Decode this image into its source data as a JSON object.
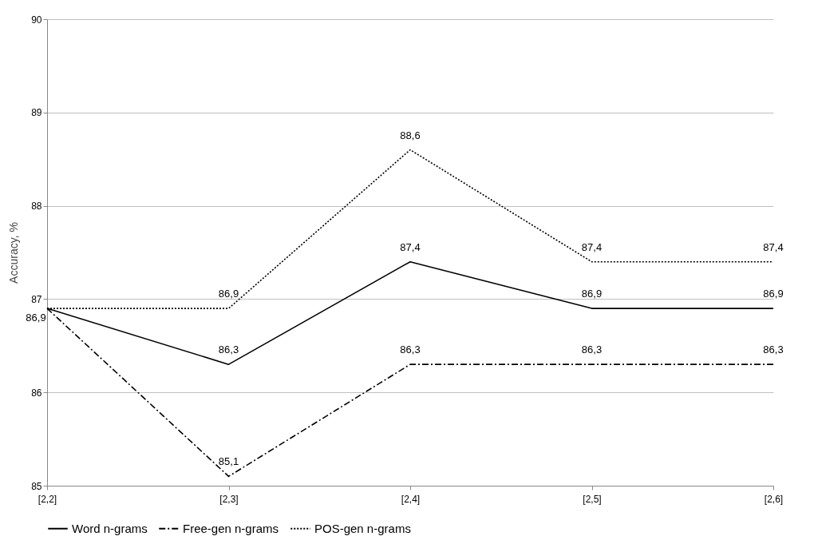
{
  "chart_data": {
    "type": "line",
    "ylabel": "Accuracy, %",
    "categories": [
      "[2,2]",
      "[2,3]",
      "[2,4]",
      "[2,5]",
      "[2,6]"
    ],
    "series": [
      {
        "name": "Word n-grams",
        "color": "#000000",
        "line_style": "solid",
        "values": [
          86.9,
          86.3,
          87.4,
          86.9,
          86.9
        ],
        "value_labels": [
          "86,9",
          "86,3",
          "87,4",
          "86,9",
          "86,9"
        ]
      },
      {
        "name": "Free-gen n-grams",
        "color": "#000000",
        "line_style": "dashdot",
        "values": [
          86.9,
          85.1,
          86.3,
          86.3,
          86.3
        ],
        "value_labels": [
          null,
          "85,1",
          "86,3",
          "86,3",
          "86,3"
        ]
      },
      {
        "name": "POS-gen n-grams",
        "color": "#000000",
        "line_style": "dotted",
        "values": [
          86.9,
          86.9,
          88.6,
          87.4,
          87.4
        ],
        "value_labels": [
          null,
          "86,9",
          "88,6",
          "87,4",
          "87,4"
        ]
      }
    ],
    "ylim": [
      85,
      90
    ],
    "yticks": [
      85,
      86,
      87,
      88,
      89,
      90
    ],
    "grid": "y",
    "legend": "bottom",
    "marker": "none"
  }
}
